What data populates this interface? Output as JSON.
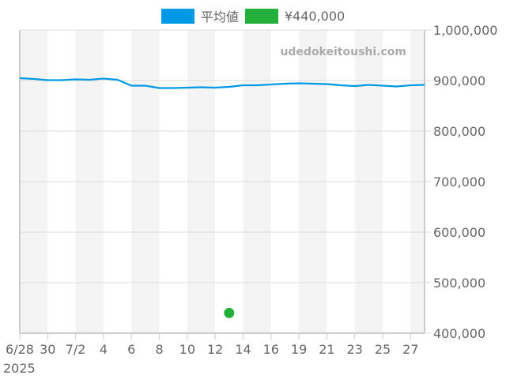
{
  "legend": {
    "items": [
      {
        "label": "平均値",
        "color": "#0099e5"
      },
      {
        "label": "¥440,000",
        "color": "#22b03a"
      }
    ]
  },
  "watermark": "udedokeitoushi.com",
  "chart_data": {
    "type": "line",
    "title": "",
    "xlabel": "",
    "ylabel": "",
    "ylim": [
      400000,
      1000000
    ],
    "y_ticks": [
      "1,000,000",
      "900,000",
      "800,000",
      "700,000",
      "600,000",
      "500,000",
      "400,000"
    ],
    "y_tick_values": [
      1000000,
      900000,
      800000,
      700000,
      600000,
      500000,
      400000
    ],
    "x_tick_labels": [
      "6/28",
      "30",
      "7/2",
      "4",
      "6",
      "8",
      "10",
      "12",
      "14",
      "16",
      "19",
      "21",
      "23",
      "25",
      "27"
    ],
    "x_year_label": "2025",
    "grid": true,
    "legend_position": "top",
    "x": [
      "6/28",
      "6/29",
      "6/30",
      "7/1",
      "7/2",
      "7/3",
      "7/4",
      "7/5",
      "7/6",
      "7/7",
      "7/8",
      "7/9",
      "7/10",
      "7/11",
      "7/12",
      "7/13",
      "7/14",
      "7/15",
      "7/16",
      "7/17",
      "7/19",
      "7/20",
      "7/21",
      "7/22",
      "7/23",
      "7/24",
      "7/25",
      "7/26",
      "7/27",
      "7/28"
    ],
    "series": [
      {
        "name": "平均値",
        "color": "#0099e5",
        "values": [
          904700,
          903100,
          900800,
          900800,
          902300,
          901600,
          903900,
          901600,
          889900,
          889900,
          885200,
          885200,
          886000,
          886700,
          886000,
          887500,
          890600,
          890600,
          892200,
          893700,
          894500,
          893700,
          892900,
          890600,
          889100,
          891400,
          889900,
          888300,
          890600,
          891400
        ]
      },
      {
        "name": "¥440,000",
        "color": "#22b03a",
        "type": "scatter",
        "points": [
          {
            "x": "7/13",
            "y": 440000
          }
        ]
      }
    ]
  }
}
